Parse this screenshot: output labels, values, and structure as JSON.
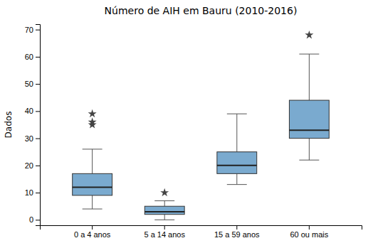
{
  "chart_data": {
    "type": "box",
    "title": "Número de AIH em Bauru (2010-2016)",
    "ylabel": "Dados",
    "categories": [
      "0 a 4 anos",
      "5 a 14 anos",
      "15 a 59 anos",
      "60 ou mais"
    ],
    "boxes": [
      {
        "median": 12,
        "q1": 9,
        "q3": 17,
        "whisker_low": 4,
        "whisker_high": 26,
        "fliers": [
          39,
          36,
          35
        ]
      },
      {
        "median": 3,
        "q1": 2,
        "q3": 5,
        "whisker_low": 0,
        "whisker_high": 7,
        "fliers": [
          10
        ]
      },
      {
        "median": 20,
        "q1": 17,
        "q3": 25,
        "whisker_low": 13,
        "whisker_high": 39,
        "fliers": []
      },
      {
        "median": 33,
        "q1": 30,
        "q3": 44,
        "whisker_low": 22,
        "whisker_high": 61,
        "fliers": [
          68
        ]
      }
    ],
    "color": "#7aaacf",
    "ylim": [
      -2,
      72
    ],
    "yticks": [
      0,
      10,
      20,
      30,
      40,
      50,
      60,
      70
    ],
    "grid": false
  }
}
